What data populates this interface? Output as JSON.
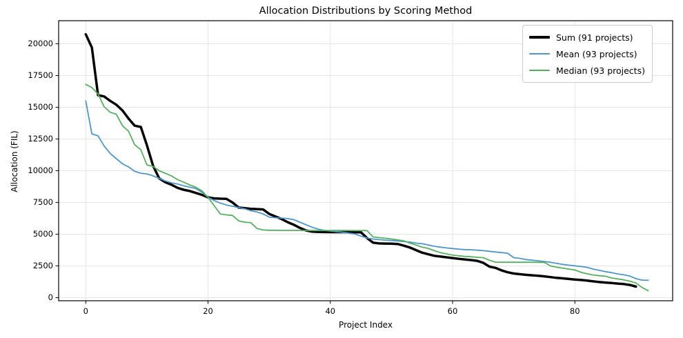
{
  "title": "Allocation Distributions by Scoring Method",
  "axes": {
    "xlabel": "Project Index",
    "ylabel": "Allocation (FIL)"
  },
  "colors": {
    "sum": "#000000",
    "mean": "#4c96cc",
    "median": "#53b15e",
    "grid": "#e5e5e5",
    "spine": "#000000",
    "legend_border": "#cbcbcb"
  },
  "chart_data": {
    "type": "line",
    "title": "Allocation Distributions by Scoring Method",
    "xlabel": "Project Index",
    "ylabel": "Allocation (FIL)",
    "x_ticks": [
      0,
      20,
      40,
      60,
      80
    ],
    "y_ticks": [
      0,
      2500,
      5000,
      7500,
      10000,
      12500,
      15000,
      17500,
      20000
    ],
    "xlim": [
      -4.44,
      96.0
    ],
    "ylim": [
      -245,
      21820
    ],
    "grid": true,
    "legend_position": "upper right",
    "series": [
      {
        "name": "Sum (91 projects)",
        "color": "#000000",
        "line_width": 3.5,
        "values": [
          20750,
          19700,
          15950,
          15850,
          15500,
          15200,
          14750,
          14100,
          13550,
          13450,
          12000,
          10400,
          9400,
          9100,
          8900,
          8650,
          8500,
          8400,
          8250,
          8100,
          7900,
          7820,
          7800,
          7790,
          7500,
          7100,
          7050,
          7000,
          6980,
          6950,
          6600,
          6400,
          6200,
          5950,
          5750,
          5500,
          5300,
          5200,
          5180,
          5170,
          5165,
          5160,
          5160,
          5155,
          5150,
          5150,
          4700,
          4330,
          4270,
          4260,
          4250,
          4230,
          4100,
          3950,
          3750,
          3550,
          3420,
          3300,
          3240,
          3180,
          3120,
          3060,
          3010,
          2960,
          2900,
          2750,
          2450,
          2350,
          2150,
          2000,
          1900,
          1850,
          1800,
          1760,
          1720,
          1680,
          1620,
          1560,
          1520,
          1470,
          1430,
          1390,
          1340,
          1280,
          1230,
          1190,
          1150,
          1110,
          1070,
          1000,
          870
        ]
      },
      {
        "name": "Mean (93 projects)",
        "color": "#4c96cc",
        "line_width": 1.8,
        "values": [
          15500,
          12900,
          12750,
          11950,
          11350,
          10950,
          10550,
          10300,
          9950,
          9800,
          9750,
          9600,
          9400,
          9200,
          9050,
          8950,
          8820,
          8700,
          8600,
          8300,
          7900,
          7650,
          7450,
          7300,
          7200,
          7100,
          7000,
          6850,
          6750,
          6600,
          6350,
          6300,
          6270,
          6230,
          6150,
          5950,
          5750,
          5550,
          5400,
          5300,
          5250,
          5200,
          5150,
          5080,
          5020,
          4850,
          4700,
          4620,
          4570,
          4530,
          4500,
          4460,
          4420,
          4380,
          4300,
          4250,
          4150,
          4050,
          3980,
          3920,
          3870,
          3820,
          3790,
          3770,
          3740,
          3700,
          3650,
          3600,
          3550,
          3500,
          3150,
          3100,
          3000,
          2950,
          2900,
          2850,
          2790,
          2700,
          2620,
          2560,
          2510,
          2450,
          2390,
          2250,
          2150,
          2050,
          1970,
          1870,
          1800,
          1700,
          1500,
          1380,
          1370
        ]
      },
      {
        "name": "Median (93 projects)",
        "color": "#53b15e",
        "line_width": 1.8,
        "values": [
          16800,
          16550,
          16050,
          15050,
          14600,
          14450,
          13550,
          13100,
          12050,
          11650,
          10450,
          10350,
          10000,
          9800,
          9600,
          9300,
          9100,
          8880,
          8700,
          8420,
          7900,
          7250,
          6600,
          6520,
          6480,
          6050,
          5950,
          5900,
          5450,
          5330,
          5310,
          5310,
          5300,
          5300,
          5300,
          5300,
          5290,
          5290,
          5290,
          5290,
          5285,
          5285,
          5285,
          5285,
          5280,
          5280,
          5280,
          4780,
          4730,
          4680,
          4620,
          4550,
          4480,
          4300,
          4150,
          3980,
          3880,
          3700,
          3550,
          3450,
          3350,
          3300,
          3250,
          3220,
          3180,
          3150,
          2950,
          2800,
          2790,
          2790,
          2790,
          2790,
          2785,
          2785,
          2780,
          2775,
          2500,
          2400,
          2330,
          2250,
          2180,
          2000,
          1880,
          1790,
          1730,
          1690,
          1550,
          1480,
          1400,
          1300,
          1150,
          800,
          550
        ]
      }
    ]
  }
}
